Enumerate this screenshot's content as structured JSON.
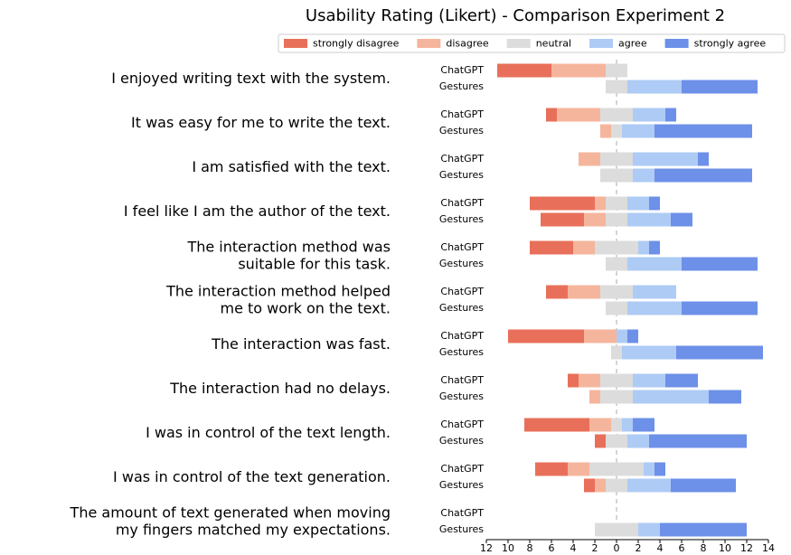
{
  "chart_data": {
    "type": "diverging-bar",
    "title": "Usability Rating (Likert) - Comparison Experiment 2",
    "categories": [
      "I enjoyed writing text with the system.",
      "It was easy for me to write the text.",
      "I am satisfied with the text.",
      "I feel like I am the author of the text.",
      "The interaction method was\nsuitable for this task.",
      "The interaction method helped\nme to work on the text.",
      "The interaction was fast.",
      "The interaction had no delays.",
      "I was in control of the text length.",
      "I was in control of the text generation.",
      "The amount of text generated when moving\nmy fingers matched my expectations."
    ],
    "groups": [
      "ChatGPT",
      "Gestures"
    ],
    "series": [
      {
        "name": "strongly disagree",
        "color": "#e8705a",
        "values": [
          [
            5,
            0
          ],
          [
            1,
            0
          ],
          [
            0,
            0
          ],
          [
            6,
            4
          ],
          [
            4,
            0
          ],
          [
            2,
            0
          ],
          [
            7,
            0
          ],
          [
            1,
            0
          ],
          [
            6,
            1
          ],
          [
            3,
            1
          ],
          [
            0,
            0
          ]
        ]
      },
      {
        "name": "disagree",
        "color": "#f5b59c",
        "values": [
          [
            5,
            0
          ],
          [
            4,
            1
          ],
          [
            2,
            0
          ],
          [
            1,
            2
          ],
          [
            2,
            0
          ],
          [
            3,
            0
          ],
          [
            3,
            0
          ],
          [
            2,
            1
          ],
          [
            2,
            0
          ],
          [
            2,
            1
          ],
          [
            0,
            0
          ]
        ]
      },
      {
        "name": "neutral",
        "color": "#dcdcdc",
        "values": [
          [
            2,
            2
          ],
          [
            3,
            1
          ],
          [
            3,
            3
          ],
          [
            2,
            2
          ],
          [
            4,
            2
          ],
          [
            3,
            2
          ],
          [
            0,
            1
          ],
          [
            3,
            3
          ],
          [
            1,
            2
          ],
          [
            5,
            2
          ],
          [
            0,
            4
          ]
        ]
      },
      {
        "name": "agree",
        "color": "#aecbf5",
        "values": [
          [
            0,
            5
          ],
          [
            3,
            3
          ],
          [
            6,
            2
          ],
          [
            2,
            4
          ],
          [
            1,
            5
          ],
          [
            4,
            5
          ],
          [
            1,
            5
          ],
          [
            3,
            7
          ],
          [
            1,
            2
          ],
          [
            1,
            4
          ],
          [
            0,
            2
          ]
        ]
      },
      {
        "name": "strongly agree",
        "color": "#6d90e8",
        "values": [
          [
            0,
            7
          ],
          [
            1,
            9
          ],
          [
            1,
            9
          ],
          [
            1,
            2
          ],
          [
            1,
            7
          ],
          [
            0,
            7
          ],
          [
            1,
            8
          ],
          [
            3,
            3
          ],
          [
            2,
            9
          ],
          [
            1,
            6
          ],
          [
            0,
            8
          ]
        ]
      }
    ],
    "xlim": [
      -12,
      14
    ],
    "xticks": [
      {
        "value": -12,
        "label": "12"
      },
      {
        "value": -10,
        "label": "10"
      },
      {
        "value": -8,
        "label": "8"
      },
      {
        "value": -6,
        "label": "6"
      },
      {
        "value": -4,
        "label": "4"
      },
      {
        "value": -2,
        "label": "2"
      },
      0,
      2,
      4,
      6,
      8,
      10,
      12,
      14
    ],
    "legend": "top"
  }
}
